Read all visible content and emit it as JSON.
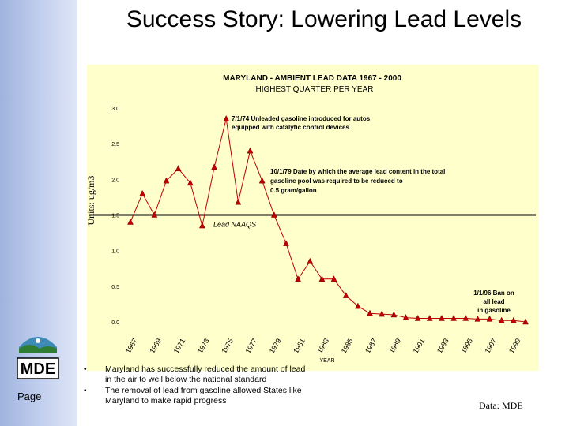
{
  "slide": {
    "title": "Success Story: Lowering Lead Levels",
    "page_label": "Page",
    "logo_text": "MDE",
    "bullets": [
      "Maryland has successfully reduced the amount of lead in the air to well below the national standard",
      "The removal of lead from gasoline allowed States like Maryland to make rapid progress"
    ],
    "source": "Data:  MDE",
    "colors": {
      "sidebar": "#b8c6ea",
      "chart_bg": "#ffffcc",
      "series": "#c00000",
      "marker": "#c00000",
      "naaqs": "#000000"
    }
  },
  "chart_data": {
    "type": "line",
    "title": "MARYLAND - AMBIENT LEAD DATA    1967 - 2000",
    "subtitle": "HIGHEST QUARTER PER YEAR",
    "xlabel": "YEAR",
    "ylabel": "Units: ug/m3",
    "ylim": [
      0,
      3.0
    ],
    "yticks": [
      "0.0",
      "0.5",
      "1.0",
      "1.5",
      "2.0",
      "2.5",
      "3.0"
    ],
    "ytick_values": [
      0,
      0.5,
      1.0,
      1.5,
      2.0,
      2.5,
      3.0
    ],
    "xticks": [
      "1967",
      "1969",
      "1971",
      "1973",
      "1975",
      "1977",
      "1979",
      "1981",
      "1983",
      "1985",
      "1987",
      "1989",
      "1991",
      "1993",
      "1995",
      "1997",
      "1999"
    ],
    "xlim": [
      1967,
      2000
    ],
    "series": [
      {
        "x": [
          1967,
          1968,
          1969,
          1970,
          1971,
          1972,
          1973,
          1974,
          1975,
          1976,
          1977,
          1978,
          1979,
          1980,
          1981,
          1982,
          1983,
          1984,
          1985,
          1986,
          1987,
          1988,
          1989,
          1990,
          1991,
          1992,
          1993,
          1994,
          1995,
          1996,
          1997,
          1998,
          1999,
          2000
        ],
        "values": [
          1.4,
          1.8,
          1.5,
          1.98,
          2.15,
          1.95,
          1.35,
          2.17,
          2.85,
          1.68,
          2.4,
          1.98,
          1.5,
          1.1,
          0.6,
          0.85,
          0.6,
          0.6,
          0.37,
          0.22,
          0.12,
          0.11,
          0.1,
          0.06,
          0.05,
          0.05,
          0.05,
          0.05,
          0.05,
          0.04,
          0.04,
          0.02,
          0.02,
          0.0
        ]
      }
    ],
    "reference_line": {
      "label": "Lead NAAQS",
      "value": 1.5
    },
    "annotations": [
      {
        "text": [
          "7/1/74  Unleaded gasoline introduced for autos",
          "equipped with catalytic control devices"
        ]
      },
      {
        "text": [
          "10/1/79  Date by which the average lead content in the total",
          "gasoline pool was required to be reduced to",
          "0.5 gram/gallon"
        ]
      },
      {
        "text": [
          "1/1/96  Ban on",
          "all lead",
          "in gasoline"
        ]
      }
    ]
  }
}
